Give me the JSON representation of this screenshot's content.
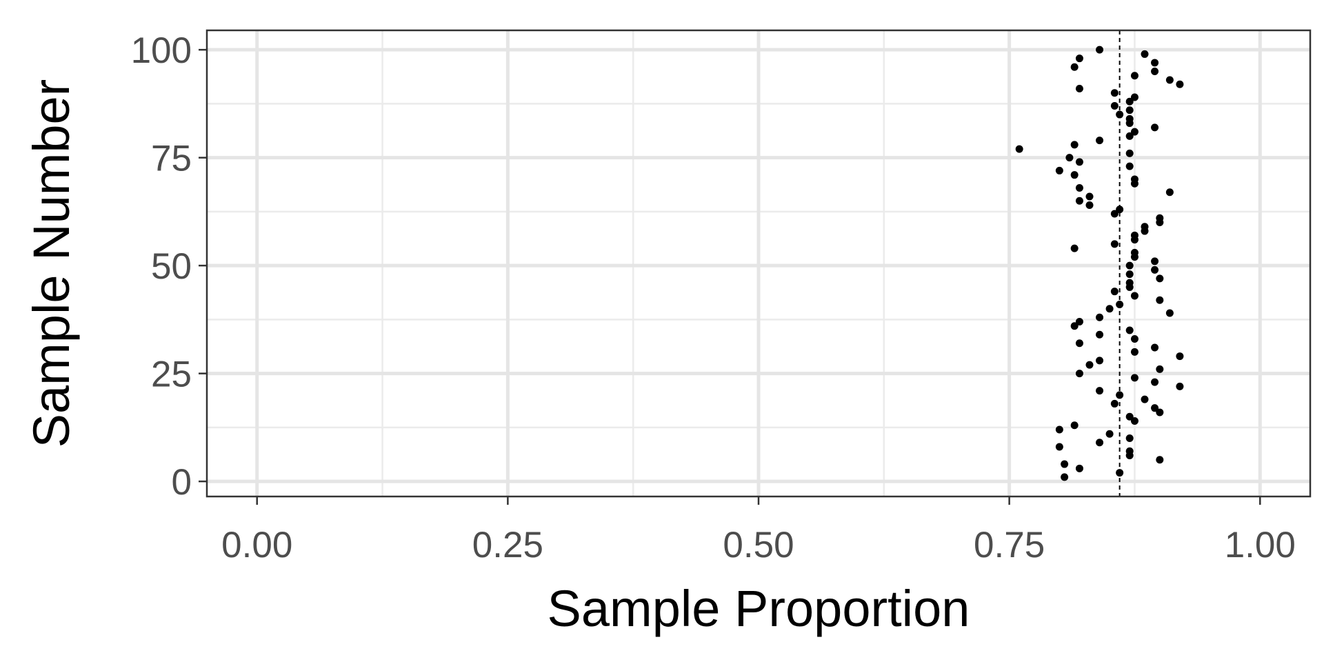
{
  "chart_data": {
    "type": "scatter",
    "title": "",
    "xlabel": "Sample Proportion",
    "ylabel": "Sample Number",
    "xlim": [
      -0.05,
      1.05
    ],
    "ylim": [
      -3.5,
      104.5
    ],
    "x_ticks": [
      0,
      0.25,
      0.5,
      0.75,
      1
    ],
    "x_tick_labels": [
      "0.00",
      "0.25",
      "0.50",
      "0.75",
      "1.00"
    ],
    "y_ticks": [
      0,
      25,
      50,
      75,
      100
    ],
    "y_tick_labels": [
      "0",
      "25",
      "50",
      "75",
      "100"
    ],
    "x_minor_ticks": [
      0.125,
      0.375,
      0.625,
      0.875
    ],
    "y_minor_ticks": [
      12.5,
      37.5,
      62.5,
      87.5
    ],
    "grid": true,
    "reference_line": {
      "x": 0.86,
      "style": "dashed"
    },
    "points": [
      [
        0.805,
        1
      ],
      [
        0.86,
        2
      ],
      [
        0.82,
        3
      ],
      [
        0.805,
        4
      ],
      [
        0.9,
        5
      ],
      [
        0.87,
        6
      ],
      [
        0.87,
        7
      ],
      [
        0.8,
        8
      ],
      [
        0.84,
        9
      ],
      [
        0.87,
        10
      ],
      [
        0.85,
        11
      ],
      [
        0.8,
        12
      ],
      [
        0.815,
        13
      ],
      [
        0.875,
        14
      ],
      [
        0.87,
        15
      ],
      [
        0.9,
        16
      ],
      [
        0.895,
        17
      ],
      [
        0.855,
        18
      ],
      [
        0.885,
        19
      ],
      [
        0.86,
        20
      ],
      [
        0.84,
        21
      ],
      [
        0.92,
        22
      ],
      [
        0.895,
        23
      ],
      [
        0.875,
        24
      ],
      [
        0.82,
        25
      ],
      [
        0.9,
        26
      ],
      [
        0.83,
        27
      ],
      [
        0.84,
        28
      ],
      [
        0.92,
        29
      ],
      [
        0.875,
        30
      ],
      [
        0.895,
        31
      ],
      [
        0.82,
        32
      ],
      [
        0.875,
        33
      ],
      [
        0.84,
        34
      ],
      [
        0.87,
        35
      ],
      [
        0.815,
        36
      ],
      [
        0.82,
        37
      ],
      [
        0.84,
        38
      ],
      [
        0.91,
        39
      ],
      [
        0.85,
        40
      ],
      [
        0.86,
        41
      ],
      [
        0.9,
        42
      ],
      [
        0.875,
        43
      ],
      [
        0.855,
        44
      ],
      [
        0.87,
        45
      ],
      [
        0.87,
        46
      ],
      [
        0.9,
        47
      ],
      [
        0.87,
        48
      ],
      [
        0.895,
        49
      ],
      [
        0.87,
        50
      ],
      [
        0.895,
        51
      ],
      [
        0.875,
        52
      ],
      [
        0.875,
        53
      ],
      [
        0.815,
        54
      ],
      [
        0.855,
        55
      ],
      [
        0.875,
        56
      ],
      [
        0.875,
        57
      ],
      [
        0.885,
        58
      ],
      [
        0.885,
        59
      ],
      [
        0.9,
        60
      ],
      [
        0.9,
        61
      ],
      [
        0.855,
        62
      ],
      [
        0.86,
        63
      ],
      [
        0.83,
        64
      ],
      [
        0.82,
        65
      ],
      [
        0.83,
        66
      ],
      [
        0.91,
        67
      ],
      [
        0.82,
        68
      ],
      [
        0.875,
        69
      ],
      [
        0.875,
        70
      ],
      [
        0.815,
        71
      ],
      [
        0.8,
        72
      ],
      [
        0.87,
        73
      ],
      [
        0.82,
        74
      ],
      [
        0.81,
        75
      ],
      [
        0.87,
        76
      ],
      [
        0.76,
        77
      ],
      [
        0.815,
        78
      ],
      [
        0.84,
        79
      ],
      [
        0.87,
        80
      ],
      [
        0.875,
        81
      ],
      [
        0.895,
        82
      ],
      [
        0.87,
        83
      ],
      [
        0.87,
        84
      ],
      [
        0.86,
        85
      ],
      [
        0.87,
        86
      ],
      [
        0.855,
        87
      ],
      [
        0.87,
        88
      ],
      [
        0.875,
        89
      ],
      [
        0.855,
        90
      ],
      [
        0.82,
        91
      ],
      [
        0.92,
        92
      ],
      [
        0.91,
        93
      ],
      [
        0.875,
        94
      ],
      [
        0.895,
        95
      ],
      [
        0.815,
        96
      ],
      [
        0.895,
        97
      ],
      [
        0.82,
        98
      ],
      [
        0.885,
        99
      ],
      [
        0.84,
        100
      ]
    ]
  }
}
